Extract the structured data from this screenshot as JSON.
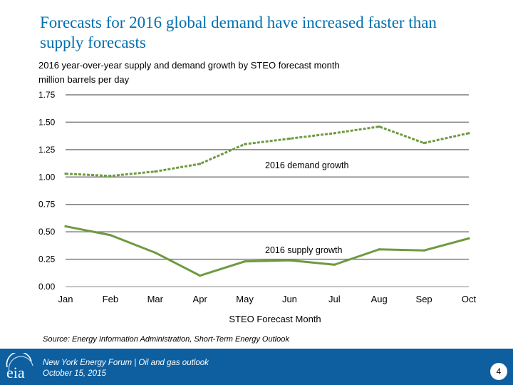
{
  "slide": {
    "title": "Forecasts for 2016 global demand have increased faster than supply forecasts",
    "subtitle_line1": "2016 year-over-year supply and demand growth by STEO forecast month",
    "subtitle_line2": "million barrels per day",
    "source": "Source: Energy Information Administration, Short-Term Energy Outlook",
    "page_number": "4"
  },
  "footer": {
    "logo_text": "eia",
    "line1": "New York Energy Forum | Oil and gas outlook",
    "line2": "October 15, 2015"
  },
  "colors": {
    "title": "#0070ae",
    "series": "#6e9a40",
    "grid": "#7f7f7f",
    "footer_bg": "#0d5fa0"
  },
  "chart_data": {
    "type": "line",
    "title": "",
    "xlabel": "STEO Forecast Month",
    "ylabel": "million barrels per day",
    "categories": [
      "Jan",
      "Feb",
      "Mar",
      "Apr",
      "May",
      "Jun",
      "Jul",
      "Aug",
      "Sep",
      "Oct"
    ],
    "ylim": [
      0,
      1.75
    ],
    "yticks": [
      "0.00",
      "0.25",
      "0.50",
      "0.75",
      "1.00",
      "1.25",
      "1.50",
      "1.75"
    ],
    "grid": true,
    "series": [
      {
        "name": "2016 demand growth",
        "style": "dashed",
        "values": [
          1.03,
          1.01,
          1.05,
          1.12,
          1.3,
          1.35,
          1.4,
          1.46,
          1.31,
          1.4
        ]
      },
      {
        "name": "2016 supply growth",
        "style": "solid",
        "values": [
          0.55,
          0.47,
          0.31,
          0.1,
          0.23,
          0.24,
          0.2,
          0.34,
          0.33,
          0.44
        ]
      }
    ]
  }
}
